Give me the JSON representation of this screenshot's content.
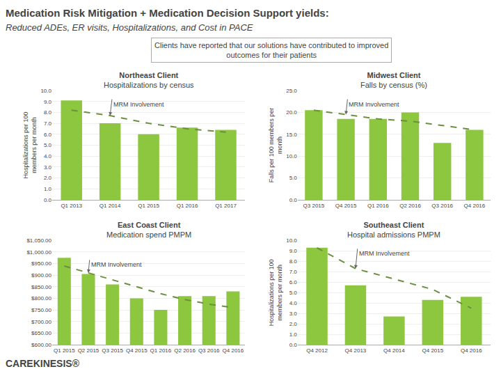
{
  "title": "Medication Risk Mitigation + Medication Decision Support yields:",
  "subtitle": "Reduced ADEs, ER visits, Hospitalizations, and Cost in PACE",
  "annotations": [
    {
      "text": "Clients have reported that our solutions have contributed to improved\noutcomes for their patients"
    },
    {
      "text": "CAREKINESIS®"
    }
  ],
  "chart_data": [
    {
      "type": "bar",
      "title": "Northeast Client",
      "subtitle": "Hospitalizations by census",
      "ylabel": "Hospitalizations per 100\nmembers per month",
      "categories": [
        "Q1 2013",
        "Q1 2014",
        "Q1 2015",
        "Q1 2016",
        "Q1 2017"
      ],
      "series": [
        {
          "type": "bar",
          "color": "#8dc63f",
          "values": [
            9.1,
            7.0,
            6.0,
            6.6,
            6.4
          ]
        },
        {
          "type": "line",
          "color": "#6b8f3e",
          "line_style": "dashed",
          "values": [
            8.2,
            7.7,
            7.0,
            6.5,
            6.2
          ]
        }
      ],
      "ylim": [
        0,
        10.0
      ],
      "yticks": [
        {
          "value": 0.0,
          "label": "0.0"
        },
        {
          "value": 1.0,
          "label": "1.0"
        },
        {
          "value": 2.0,
          "label": "2.0"
        },
        {
          "value": 3.0,
          "label": "3.0"
        },
        {
          "value": 4.0,
          "label": "4.0"
        },
        {
          "value": 5.0,
          "label": "5.0"
        },
        {
          "value": 6.0,
          "label": "6.0"
        },
        {
          "value": 7.0,
          "label": "7.0"
        },
        {
          "value": 8.0,
          "label": "8.0"
        },
        {
          "value": 9.0,
          "label": "9.0"
        },
        {
          "value": 10.0,
          "label": "10.0"
        }
      ],
      "grid": true,
      "annotations": [
        {
          "text": "MRM Involvement",
          "x": "Q1 2014"
        }
      ]
    },
    {
      "type": "bar",
      "title": "Midwest Client",
      "subtitle": "Falls by census (%)",
      "ylabel": "Falls per 100 members per\nmonth",
      "categories": [
        "Q3 2015",
        "Q4 2015",
        "Q1 2016",
        "Q2 2016",
        "Q3 2016",
        "Q4 2016"
      ],
      "series": [
        {
          "type": "bar",
          "color": "#8dc63f",
          "values": [
            20.5,
            18.5,
            18.5,
            20.0,
            13.0,
            16.0
          ]
        },
        {
          "type": "line",
          "color": "#6b8f3e",
          "line_style": "dashed",
          "values": [
            20.5,
            19.5,
            18.5,
            18.0,
            17.0,
            16.0
          ]
        }
      ],
      "ylim": [
        0,
        25.0
      ],
      "yticks": [
        {
          "value": 0.0,
          "label": "0.0"
        },
        {
          "value": 5.0,
          "label": "5.0"
        },
        {
          "value": 10.0,
          "label": "10.0"
        },
        {
          "value": 15.0,
          "label": "15.0"
        },
        {
          "value": 20.0,
          "label": "20.0"
        },
        {
          "value": 25.0,
          "label": "25.0"
        }
      ],
      "grid": true,
      "annotations": [
        {
          "text": "MRM Involvement",
          "x": "Q4 2015"
        }
      ]
    },
    {
      "type": "bar",
      "title": "East Coast Client",
      "subtitle": "Medication spend PMPM",
      "categories": [
        "Q1 2015",
        "Q2 2015",
        "Q3 2015",
        "Q4 2015",
        "Q1 2016",
        "Q2 2016",
        "Q3 2016",
        "Q4 2016"
      ],
      "series": [
        {
          "type": "bar",
          "color": "#8dc63f",
          "values": [
            975,
            905,
            860,
            800,
            750,
            810,
            810,
            830
          ]
        },
        {
          "type": "line",
          "color": "#6b8f3e",
          "line_style": "dashed",
          "values": [
            940,
            910,
            880,
            850,
            820,
            795,
            775,
            760
          ]
        }
      ],
      "ylim": [
        600,
        1050
      ],
      "yticks": [
        {
          "value": 600,
          "label": "$600.00"
        },
        {
          "value": 650,
          "label": "$650.00"
        },
        {
          "value": 700,
          "label": "$700.00"
        },
        {
          "value": 750,
          "label": "$750.00"
        },
        {
          "value": 800,
          "label": "$800.00"
        },
        {
          "value": 850,
          "label": "$850.00"
        },
        {
          "value": 900,
          "label": "$900.00"
        },
        {
          "value": 950,
          "label": "$950.00"
        },
        {
          "value": 1000,
          "label": "$1,000.00"
        },
        {
          "value": 1050,
          "label": "$1,050.00"
        }
      ],
      "grid": true,
      "annotations": [
        {
          "text": "MRM Involvement",
          "x": "Q2 2015"
        }
      ]
    },
    {
      "type": "bar",
      "title": "Southeast Client",
      "subtitle": "Hospital admissions PMPM",
      "ylabel": "Hospitalizations per 100\nmembers per month",
      "categories": [
        "Q4 2012",
        "Q4 2013",
        "Q4 2014",
        "Q4 2015",
        "Q4 2016"
      ],
      "series": [
        {
          "type": "bar",
          "color": "#8dc63f",
          "values": [
            9.3,
            5.7,
            2.7,
            4.3,
            4.6
          ]
        },
        {
          "type": "line",
          "color": "#6b8f3e",
          "line_style": "dashed",
          "values": [
            9.3,
            7.3,
            6.3,
            5.3,
            3.5
          ]
        }
      ],
      "ylim": [
        0,
        10.0
      ],
      "yticks": [
        {
          "value": 0.0,
          "label": "0.0"
        },
        {
          "value": 1.0,
          "label": "1.0"
        },
        {
          "value": 2.0,
          "label": "2.0"
        },
        {
          "value": 3.0,
          "label": "3.0"
        },
        {
          "value": 4.0,
          "label": "4.0"
        },
        {
          "value": 5.0,
          "label": "5.0"
        },
        {
          "value": 6.0,
          "label": "6.0"
        },
        {
          "value": 7.0,
          "label": "7.0"
        },
        {
          "value": 8.0,
          "label": "8.0"
        },
        {
          "value": 9.0,
          "label": "9.0"
        },
        {
          "value": 10.0,
          "label": "10.0"
        }
      ],
      "grid": true,
      "annotations": [
        {
          "text": "MRM Involvement",
          "x": "Q4 2013"
        }
      ]
    }
  ]
}
